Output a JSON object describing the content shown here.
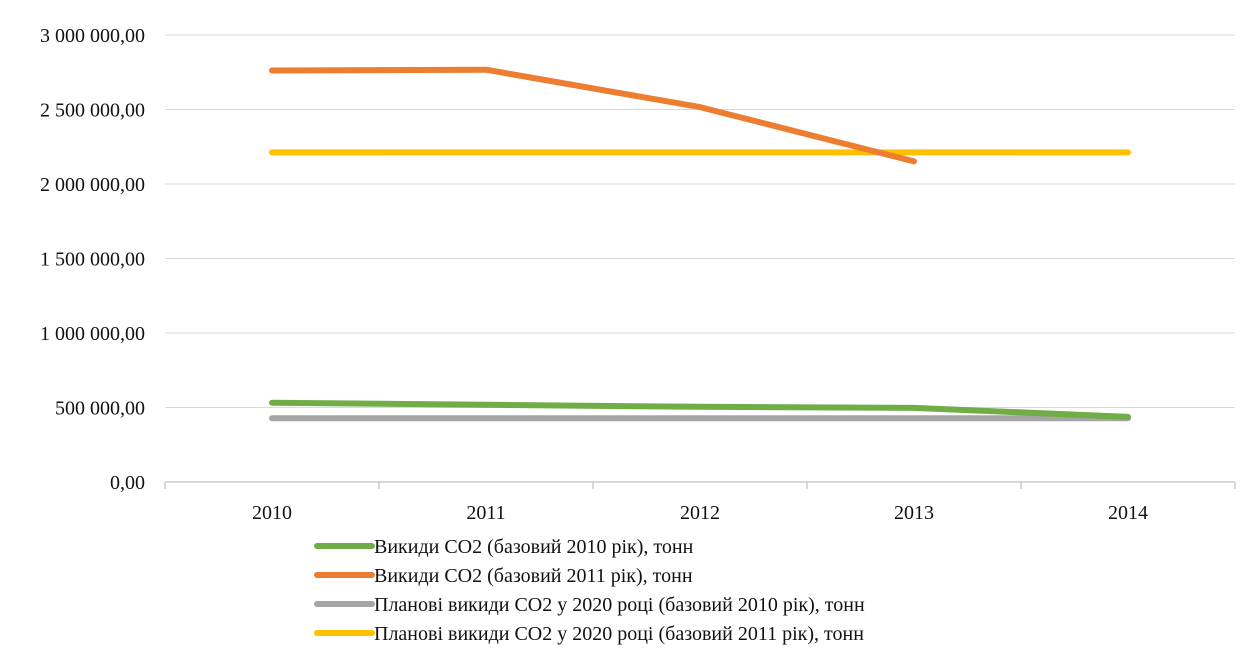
{
  "chart_data": {
    "type": "line",
    "title": "",
    "xlabel": "",
    "ylabel": "",
    "categories": [
      "2010",
      "2011",
      "2012",
      "2013",
      "2014"
    ],
    "ylim": [
      0,
      3000000
    ],
    "yticks": [
      0,
      500000,
      1000000,
      1500000,
      2000000,
      2500000,
      3000000
    ],
    "ytick_labels": [
      "0,00",
      "500 000,00",
      "1 000 000,00",
      "1 500 000,00",
      "2 000 000,00",
      "2 500 000,00",
      "3 000 000,00"
    ],
    "grid": "horizontal",
    "legend_position": "bottom-left",
    "series": [
      {
        "name": "Викиди СО2 (базовий 2010 рік), тонн",
        "color": "#70AD47",
        "values": [
          532000,
          518000,
          505000,
          497000,
          437000
        ]
      },
      {
        "name": "Викиди СО2 (базовий 2011 рік), тонн",
        "color": "#ED7D31",
        "values": [
          2762000,
          2767000,
          2516000,
          2152000,
          null
        ]
      },
      {
        "name": "Планові викиди СО2 у 2020 році (базовий 2010 рік), тонн",
        "color": "#A5A5A5",
        "values": [
          428000,
          428000,
          428000,
          428000,
          428000
        ]
      },
      {
        "name": "Планові викиди СО2 у 2020 році (базовий 2011 рік), тонн",
        "color": "#FFC000",
        "values": [
          2212000,
          2212000,
          2212000,
          2212000,
          2212000
        ]
      }
    ]
  }
}
